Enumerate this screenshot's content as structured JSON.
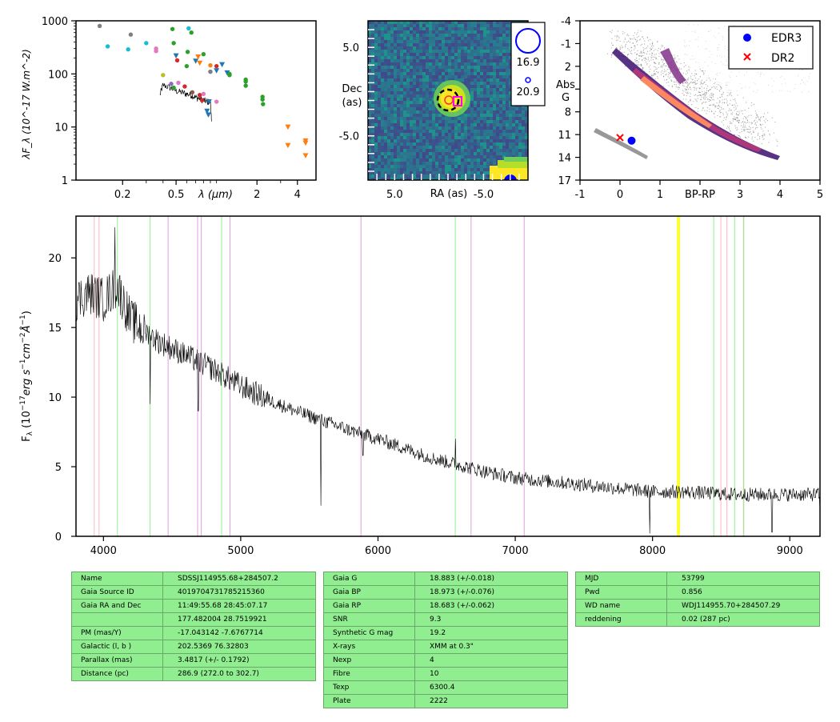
{
  "chart_data": [
    {
      "type": "scatter",
      "name": "sed",
      "xlabel": "λ (μm)",
      "ylabel": "λF_λ (10^-17 W.m^-2)",
      "xscale": "log",
      "yscale": "log",
      "xlim": [
        0.09,
        5.5
      ],
      "ylim": [
        1,
        1000
      ],
      "xticklabels": [
        "0.2",
        "0.5",
        "2",
        "4"
      ],
      "xticks": [
        0.2,
        0.5,
        2,
        4
      ],
      "yticklabels": [
        "1",
        "10",
        "100",
        "1000"
      ],
      "yticks": [
        1,
        10,
        100,
        1000
      ],
      "points": [
        {
          "x": 0.135,
          "y": 800,
          "color": "#7f7f7f",
          "marker": "o"
        },
        {
          "x": 0.23,
          "y": 550,
          "color": "#7f7f7f",
          "marker": "o"
        },
        {
          "x": 0.155,
          "y": 330,
          "color": "#17becf",
          "marker": "o"
        },
        {
          "x": 0.22,
          "y": 290,
          "color": "#17becf",
          "marker": "o"
        },
        {
          "x": 0.3,
          "y": 380,
          "color": "#17becf",
          "marker": "o"
        },
        {
          "x": 0.355,
          "y": 300,
          "color": "#e377c2",
          "marker": "o"
        },
        {
          "x": 0.355,
          "y": 270,
          "color": "#e377c2",
          "marker": "o"
        },
        {
          "x": 0.47,
          "y": 700,
          "color": "#2ca02c",
          "marker": "o"
        },
        {
          "x": 0.62,
          "y": 720,
          "color": "#17becf",
          "marker": "o"
        },
        {
          "x": 0.65,
          "y": 600,
          "color": "#2ca02c",
          "marker": "o"
        },
        {
          "x": 0.48,
          "y": 380,
          "color": "#2ca02c",
          "marker": "o"
        },
        {
          "x": 0.5,
          "y": 220,
          "color": "#1f77b4",
          "marker": "v"
        },
        {
          "x": 0.51,
          "y": 180,
          "color": "#d62728",
          "marker": "o"
        },
        {
          "x": 0.61,
          "y": 260,
          "color": "#2ca02c",
          "marker": "o"
        },
        {
          "x": 0.6,
          "y": 140,
          "color": "#2ca02c",
          "marker": "o"
        },
        {
          "x": 0.7,
          "y": 175,
          "color": "#1f77b4",
          "marker": "v"
        },
        {
          "x": 0.73,
          "y": 210,
          "color": "#ff7f0e",
          "marker": "v"
        },
        {
          "x": 0.75,
          "y": 160,
          "color": "#ff7f0e",
          "marker": "v"
        },
        {
          "x": 0.8,
          "y": 235,
          "color": "#2ca02c",
          "marker": "o"
        },
        {
          "x": 0.9,
          "y": 145,
          "color": "#ff7f0e",
          "marker": "o"
        },
        {
          "x": 0.9,
          "y": 110,
          "color": "#e377c2",
          "marker": "o"
        },
        {
          "x": 0.9,
          "y": 110,
          "color": "#7f7f7f",
          "marker": "o"
        },
        {
          "x": 1.0,
          "y": 140,
          "color": "#d62728",
          "marker": "o"
        },
        {
          "x": 1.0,
          "y": 115,
          "color": "#1f77b4",
          "marker": "v"
        },
        {
          "x": 1.1,
          "y": 150,
          "color": "#1f77b4",
          "marker": "v"
        },
        {
          "x": 1.2,
          "y": 105,
          "color": "#1f77b4",
          "marker": "v"
        },
        {
          "x": 0.4,
          "y": 95,
          "color": "#bcbd22",
          "marker": "o"
        },
        {
          "x": 0.46,
          "y": 65,
          "color": "#9467bd",
          "marker": "o"
        },
        {
          "x": 0.52,
          "y": 68,
          "color": "#e377c2",
          "marker": "o"
        },
        {
          "x": 0.48,
          "y": 55,
          "color": "#2ca02c",
          "marker": "o"
        },
        {
          "x": 0.58,
          "y": 58,
          "color": "#d62728",
          "marker": "o"
        },
        {
          "x": 0.66,
          "y": 45,
          "color": "#8c564b",
          "marker": "o"
        },
        {
          "x": 0.75,
          "y": 40,
          "color": "#d62728",
          "marker": "o"
        },
        {
          "x": 0.8,
          "y": 42,
          "color": "#e377c2",
          "marker": "o"
        },
        {
          "x": 0.78,
          "y": 32,
          "color": "#d62728",
          "marker": "o"
        },
        {
          "x": 0.88,
          "y": 30,
          "color": "#1f77b4",
          "marker": "v"
        },
        {
          "x": 0.85,
          "y": 20,
          "color": "#1f77b4",
          "marker": "v"
        },
        {
          "x": 0.87,
          "y": 17,
          "color": "#1f77b4",
          "marker": "v"
        },
        {
          "x": 1.0,
          "y": 30,
          "color": "#e377c2",
          "marker": "o"
        },
        {
          "x": 1.25,
          "y": 100,
          "color": "#2ca02c",
          "marker": "o"
        },
        {
          "x": 1.25,
          "y": 95,
          "color": "#2ca02c",
          "marker": "o"
        },
        {
          "x": 1.65,
          "y": 78,
          "color": "#2ca02c",
          "marker": "o"
        },
        {
          "x": 1.65,
          "y": 72,
          "color": "#2ca02c",
          "marker": "o"
        },
        {
          "x": 1.65,
          "y": 60,
          "color": "#2ca02c",
          "marker": "o"
        },
        {
          "x": 2.2,
          "y": 37,
          "color": "#2ca02c",
          "marker": "o"
        },
        {
          "x": 2.2,
          "y": 33,
          "color": "#2ca02c",
          "marker": "o"
        },
        {
          "x": 2.22,
          "y": 27,
          "color": "#2ca02c",
          "marker": "o"
        },
        {
          "x": 3.4,
          "y": 10,
          "color": "#ff7f0e",
          "marker": "v"
        },
        {
          "x": 3.4,
          "y": 4.5,
          "color": "#ff7f0e",
          "marker": "v"
        },
        {
          "x": 4.6,
          "y": 5.5,
          "color": "#ff7f0e",
          "marker": "v"
        },
        {
          "x": 4.6,
          "y": 5.0,
          "color": "#ff7f0e",
          "marker": "v"
        },
        {
          "x": 4.6,
          "y": 2.9,
          "color": "#ff7f0e",
          "marker": "v"
        }
      ],
      "spectrum_overlay": {
        "x": [
          0.38,
          0.4,
          0.45,
          0.5,
          0.55,
          0.6,
          0.65,
          0.7,
          0.75,
          0.8,
          0.85,
          0.9,
          0.92
        ],
        "y": [
          40,
          62,
          55,
          48,
          45,
          42,
          40,
          36,
          34,
          32,
          30,
          30,
          9
        ]
      }
    },
    {
      "type": "heatmap",
      "name": "image-cutout",
      "xlabel": "RA (as)",
      "ylabel": "Dec\n(as)",
      "xticklabels": [
        "5.0",
        "-5.0"
      ],
      "yticklabels": [
        "5.0",
        "-5.0"
      ],
      "xlim": [
        8,
        -10
      ],
      "ylim": [
        -10,
        8
      ],
      "colormap": "viridis",
      "legend": [
        {
          "label": "16.9",
          "marker": "large-circle",
          "color": "#0000ff"
        },
        {
          "label": "20.9",
          "marker": "small-circle",
          "color": "#0000ff"
        }
      ],
      "target": {
        "x": 0,
        "y": 0
      }
    },
    {
      "type": "scatter",
      "name": "hr-diagram",
      "xlabel": "BP-RP",
      "ylabel": "Abs\nG",
      "xlim": [
        -1,
        5
      ],
      "ylim": [
        17,
        -4
      ],
      "xticklabels": [
        "-1",
        "0",
        "1",
        "3",
        "4",
        "5"
      ],
      "xticks": [
        -1,
        0,
        1,
        3,
        4,
        5
      ],
      "yticklabels": [
        "-4",
        "-1",
        "2",
        "8",
        "11",
        "14",
        "17"
      ],
      "yticks": [
        -4,
        -1,
        2,
        8,
        11,
        14,
        17
      ],
      "legend": [
        {
          "label": "EDR3",
          "marker": "o",
          "color": "#0000ff"
        },
        {
          "label": "DR2",
          "marker": "x",
          "color": "#ff0000"
        }
      ],
      "legend_position": "top-right",
      "points": [
        {
          "series": "EDR3",
          "x": 0.29,
          "y": 11.8
        },
        {
          "series": "DR2",
          "x": 0.0,
          "y": 11.4
        }
      ]
    },
    {
      "type": "line",
      "name": "spectrum",
      "xlabel": "",
      "ylabel": "F_λ (10^-17 erg s^-1 cm^-2 Å^-1)",
      "xlim": [
        3800,
        9220
      ],
      "ylim": [
        0,
        23
      ],
      "xticklabels": [
        "4000",
        "5000",
        "6000",
        "7000",
        "8000",
        "9000"
      ],
      "xticks": [
        4000,
        5000,
        6000,
        7000,
        8000,
        9000
      ],
      "yticklabels": [
        "0",
        "5",
        "10",
        "15",
        "20"
      ],
      "yticks": [
        0,
        5,
        10,
        15,
        20
      ],
      "anchors": [
        [
          3800,
          17
        ],
        [
          3900,
          17.5
        ],
        [
          4000,
          17
        ],
        [
          4100,
          18
        ],
        [
          4200,
          15.5
        ],
        [
          4400,
          14
        ],
        [
          4600,
          13
        ],
        [
          4800,
          12
        ],
        [
          5000,
          10.8
        ],
        [
          5200,
          9.8
        ],
        [
          5400,
          9
        ],
        [
          5600,
          8.3
        ],
        [
          5800,
          7.6
        ],
        [
          6000,
          7
        ],
        [
          6200,
          6.3
        ],
        [
          6400,
          5.6
        ],
        [
          6600,
          5.1
        ],
        [
          6800,
          4.6
        ],
        [
          7000,
          4.2
        ],
        [
          7200,
          4
        ],
        [
          7400,
          3.8
        ],
        [
          7600,
          3.6
        ],
        [
          7800,
          3.4
        ],
        [
          8000,
          3.2
        ],
        [
          8200,
          3.2
        ],
        [
          8400,
          3.1
        ],
        [
          8600,
          3.0
        ],
        [
          8800,
          3.0
        ],
        [
          9000,
          3.0
        ],
        [
          9220,
          3.0
        ]
      ],
      "dips": [
        {
          "x": 4340,
          "y": 9.5
        },
        {
          "x": 4690,
          "y": 9.0
        },
        {
          "x": 5585,
          "y": 2.2
        },
        {
          "x": 5890,
          "y": 5.8
        },
        {
          "x": 7980,
          "y": 0.2
        },
        {
          "x": 8870,
          "y": 0.3
        },
        {
          "x": 9220,
          "y": 1.8
        }
      ],
      "peaks": [
        {
          "x": 4085,
          "y": 22.2
        },
        {
          "x": 6563,
          "y": 7.0
        }
      ],
      "vlines": [
        {
          "x": 3933,
          "color": "#ffb6c1"
        },
        {
          "x": 3968,
          "color": "#ffb6c1"
        },
        {
          "x": 4102,
          "color": "#90ee90"
        },
        {
          "x": 4340,
          "color": "#90ee90"
        },
        {
          "x": 4471,
          "color": "#dda0dd"
        },
        {
          "x": 4686,
          "color": "#dda0dd"
        },
        {
          "x": 4713,
          "color": "#dda0dd"
        },
        {
          "x": 4861,
          "color": "#90ee90"
        },
        {
          "x": 4922,
          "color": "#dda0dd"
        },
        {
          "x": 5876,
          "color": "#dda0dd"
        },
        {
          "x": 6563,
          "color": "#90ee90"
        },
        {
          "x": 6678,
          "color": "#dda0dd"
        },
        {
          "x": 7065,
          "color": "#dda0dd"
        },
        {
          "x": 8183,
          "color": "#ffff00"
        },
        {
          "x": 8195,
          "color": "#ffff00"
        },
        {
          "x": 8446,
          "color": "#90ee90"
        },
        {
          "x": 8498,
          "color": "#ffb6c1"
        },
        {
          "x": 8542,
          "color": "#ffb6c1"
        },
        {
          "x": 8598,
          "color": "#90ee90"
        },
        {
          "x": 8662,
          "color": "#ffb6c1"
        },
        {
          "x": 8665,
          "color": "#90ee90"
        }
      ]
    }
  ],
  "tables": [
    {
      "rows": [
        [
          "Name",
          "SDSSJ114955.68+284507.2"
        ],
        [
          "Gaia Source ID",
          "4019704731785215360"
        ],
        [
          "Gaia RA and Dec",
          "11:49:55.68    28:45:07.17"
        ],
        [
          "",
          "177.482004    28.7519921"
        ],
        [
          "PM (mas/Y)",
          "-17.043142    -7.6767714"
        ],
        [
          "Galactic (l, b )",
          "202.5369    76.32803"
        ],
        [
          "Parallax (mas)",
          "3.4817 (+/- 0.1792)"
        ],
        [
          "Distance (pc)",
          "286.9 (272.0 to 302.7)"
        ]
      ]
    },
    {
      "rows": [
        [
          "Gaia G",
          "18.883 (+/-0.018)"
        ],
        [
          "Gaia BP",
          "18.973 (+/-0.076)"
        ],
        [
          "Gaia RP",
          "18.683 (+/-0.062)"
        ],
        [
          "SNR",
          "9.3"
        ],
        [
          "Synthetic G mag",
          "19.2"
        ],
        [
          "X-rays",
          "XMM at 0.3\""
        ],
        [
          "Nexp",
          "4"
        ],
        [
          "Fibre",
          "10"
        ],
        [
          "Texp",
          "6300.4"
        ],
        [
          "Plate",
          "2222"
        ]
      ]
    },
    {
      "rows": [
        [
          "MJD",
          "53799"
        ],
        [
          "Pwd",
          "0.856"
        ],
        [
          "WD name",
          "WDJ114955.70+284507.29"
        ],
        [
          "reddening",
          "0.02 (287 pc)"
        ]
      ]
    }
  ]
}
